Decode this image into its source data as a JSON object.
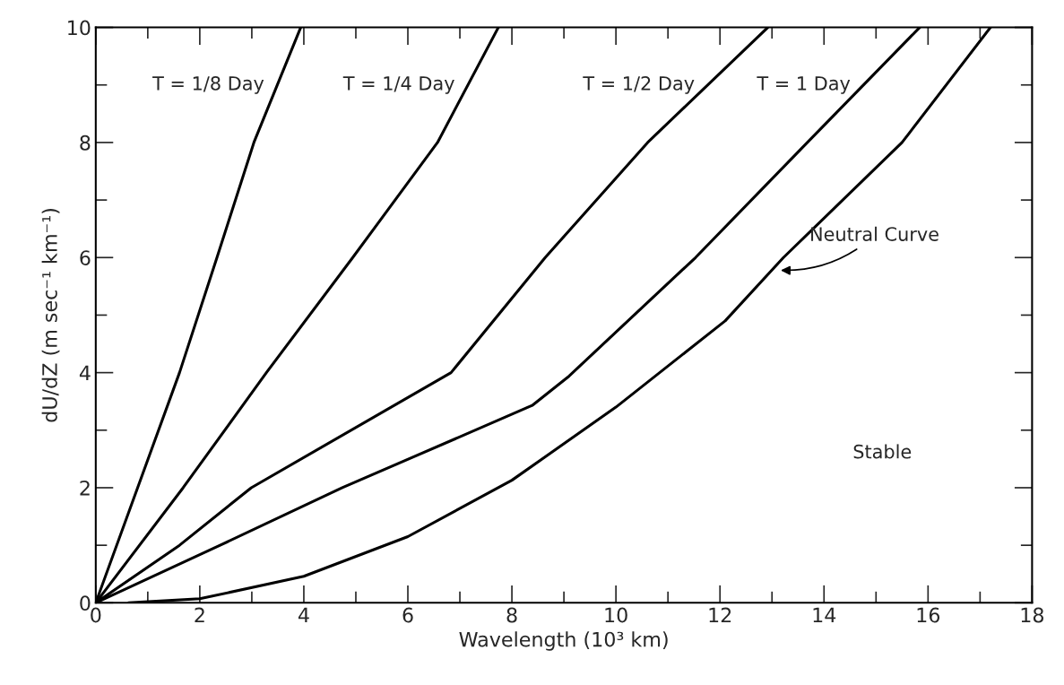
{
  "chart_data": {
    "type": "line",
    "xlabel": "Wavelength (10³ km)",
    "ylabel": "dU/dZ (m sec⁻¹ km⁻¹)",
    "series": [
      {
        "name": "T = 1/8 Day",
        "color": "#000000",
        "x": [
          0,
          1.61,
          2.33,
          3.04,
          3.94
        ],
        "values": [
          0,
          4,
          6,
          8,
          10
        ]
      },
      {
        "name": "T = 1/4 Day",
        "color": "#000000",
        "x": [
          0,
          1.68,
          3.28,
          4.94,
          6.57,
          7.74
        ],
        "values": [
          0,
          2,
          4,
          6,
          8,
          10
        ]
      },
      {
        "name": "T = 1/2 Day",
        "color": "#000000",
        "x": [
          0,
          1.61,
          2.99,
          6.83,
          8.64,
          10.61,
          12.92
        ],
        "values": [
          0,
          1,
          2,
          4,
          6,
          8,
          10
        ]
      },
      {
        "name": "T = 1 Day",
        "color": "#000000",
        "x": [
          0,
          2.39,
          4.74,
          8.39,
          9.1,
          11.53,
          13.68,
          15.84
        ],
        "values": [
          0,
          1,
          2,
          3.43,
          3.94,
          6,
          8,
          10
        ]
      },
      {
        "color": "#000000",
        "x": [
          0.63,
          2,
          4,
          6,
          8,
          10,
          12.1,
          13.22,
          15.5,
          17.2
        ],
        "values": [
          0,
          0.07,
          0.46,
          1.15,
          2.13,
          3.4,
          4.9,
          6,
          8,
          10
        ]
      }
    ],
    "annotations": [
      {
        "text": "Neutral Curve",
        "x": 13.12,
        "y": 5.78
      },
      "Stable"
    ],
    "xlim": [
      0,
      18
    ],
    "ylim": [
      0,
      10
    ],
    "xticks": [
      0,
      {
        "value": 1,
        "label": null
      },
      2,
      {
        "value": 3,
        "label": null
      },
      4,
      {
        "value": 5,
        "label": null
      },
      6,
      {
        "value": 7,
        "label": null
      },
      8,
      {
        "value": 9,
        "label": null
      },
      10,
      {
        "value": 11,
        "label": null
      },
      12,
      {
        "value": 13,
        "label": null
      },
      14,
      {
        "value": 15,
        "label": null
      },
      16,
      {
        "value": 17,
        "label": null
      },
      18
    ],
    "yticks": [
      0,
      {
        "value": 1,
        "label": null
      },
      2,
      {
        "value": 3,
        "label": null
      },
      4,
      {
        "value": 5,
        "label": null
      },
      6,
      {
        "value": 7,
        "label": null
      },
      8,
      {
        "value": 9,
        "label": null
      },
      10
    ],
    "grid": false,
    "legend": false,
    "marker": "none",
    "line_style": "solid"
  }
}
